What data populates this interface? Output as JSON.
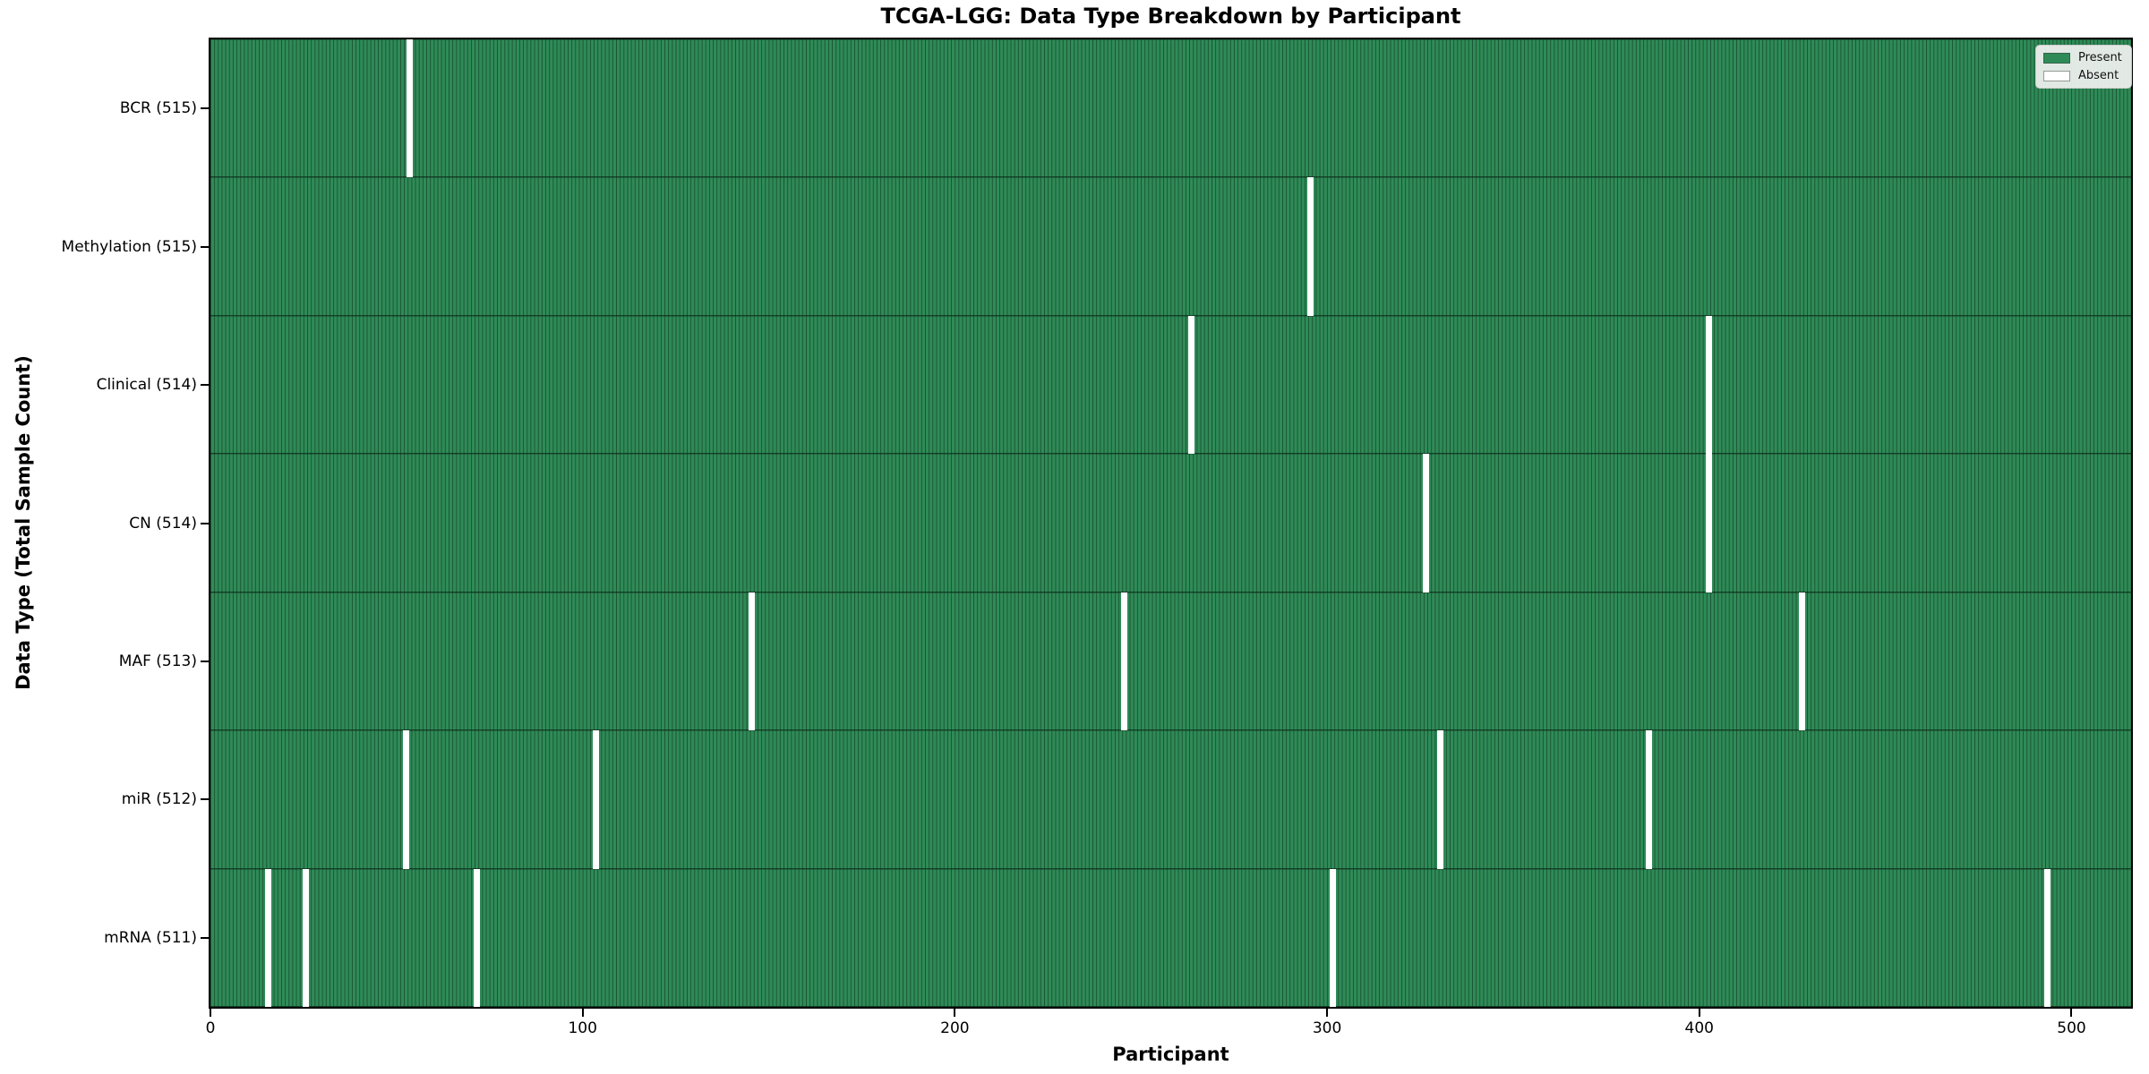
{
  "figure": {
    "title": "TCGA-LGG: Data Type Breakdown by Participant",
    "xlabel": "Participant",
    "ylabel": "Data Type (Total Sample Count)"
  },
  "legend": {
    "items": [
      {
        "name": "present",
        "label": "Present",
        "color": "#2e8b57"
      },
      {
        "name": "absent",
        "label": "Absent",
        "color": "#ffffff"
      }
    ]
  },
  "chart_data": {
    "type": "heatmap",
    "title": "TCGA-LGG: Data Type Breakdown by Participant",
    "xlabel": "Participant",
    "ylabel": "Data Type (Total Sample Count)",
    "legend_position": "upper right",
    "grid": false,
    "n_participants": 516,
    "xlim": [
      0,
      516
    ],
    "x_ticks": [
      0,
      100,
      200,
      300,
      400,
      500
    ],
    "colors": {
      "present_fill": "#2e8b57",
      "bar_edge": "#1d5334",
      "absent_fill": "#ffffff",
      "spine": "#000000"
    },
    "rows": [
      {
        "data_type": "BCR",
        "total_samples": 515,
        "label": "BCR (515)",
        "absent_participants": [
          53
        ]
      },
      {
        "data_type": "Methylation",
        "total_samples": 515,
        "label": "Methylation (515)",
        "absent_participants": [
          295
        ]
      },
      {
        "data_type": "Clinical",
        "total_samples": 514,
        "label": "Clinical (514)",
        "absent_participants": [
          263,
          402
        ]
      },
      {
        "data_type": "CN",
        "total_samples": 514,
        "label": "CN (514)",
        "absent_participants": [
          326,
          402
        ]
      },
      {
        "data_type": "MAF",
        "total_samples": 513,
        "label": "MAF (513)",
        "absent_participants": [
          145,
          245,
          427
        ]
      },
      {
        "data_type": "miR",
        "total_samples": 512,
        "label": "miR (512)",
        "absent_participants": [
          52,
          103,
          330,
          386
        ]
      },
      {
        "data_type": "mRNA",
        "total_samples": 511,
        "label": "mRNA (511)",
        "absent_participants": [
          15,
          25,
          71,
          301,
          493
        ]
      }
    ]
  }
}
